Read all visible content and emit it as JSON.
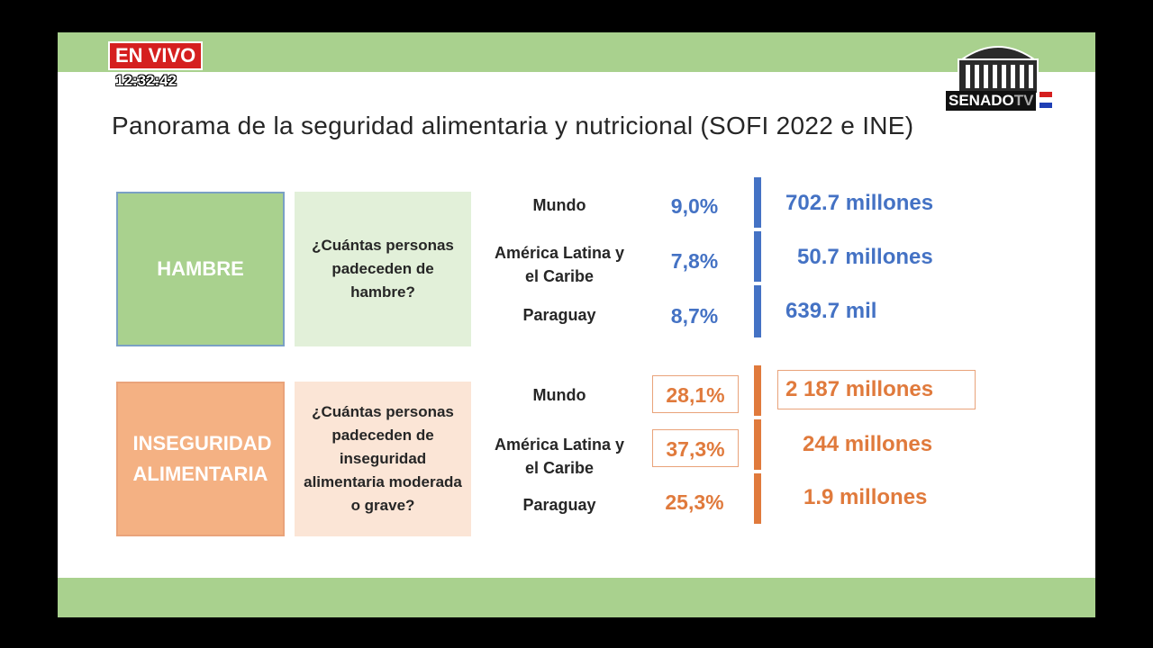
{
  "broadcast": {
    "live_label": "EN VIVO",
    "clock": "12:32:42",
    "channel_logo_text": "SENADO",
    "channel_logo_suffix": "TV"
  },
  "slide": {
    "title": "Panorama de la seguridad alimentaria y nutricional (SOFI 2022 e INE)",
    "colors": {
      "green_band": "#a9d18e",
      "blue": "#4472c4",
      "orange": "#e07a3c"
    },
    "sections": [
      {
        "category": "HAMBRE",
        "question": "¿Cuántas personas padeceden de hambre?",
        "rows": [
          {
            "region": "Mundo",
            "percent": "9,0%",
            "value": "702.7 millones"
          },
          {
            "region": "América Latina y el Caribe",
            "percent": "7,8%",
            "value": "50.7 millones"
          },
          {
            "region": "Paraguay",
            "percent": "8,7%",
            "value": "639.7 mil"
          }
        ]
      },
      {
        "category": "INSEGURIDAD ALIMENTARIA",
        "question": "¿Cuántas personas padeceden de inseguridad alimentaria moderada o grave?",
        "rows": [
          {
            "region": "Mundo",
            "percent": "28,1%",
            "value": "2 187 millones"
          },
          {
            "region": "América Latina y el Caribe",
            "percent": "37,3%",
            "value": "244 millones"
          },
          {
            "region": "Paraguay",
            "percent": "25,3%",
            "value": "1.9 millones"
          }
        ]
      }
    ]
  }
}
